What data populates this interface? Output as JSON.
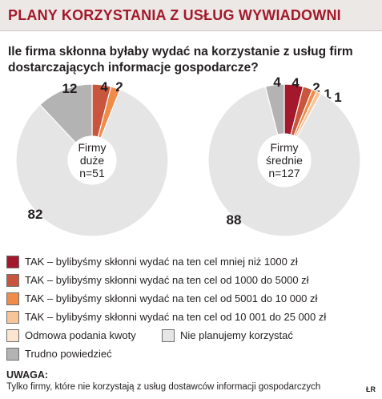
{
  "header": {
    "title": "PLANY KORZYSTANIA Z USŁUG WYWIADOWNI",
    "question": "Ile firma skłonna byłaby wydać na korzystanie z usług firm dostarczających informacje gospodarcze?"
  },
  "chart_data": [
    {
      "type": "pie",
      "center_lines": [
        "Firmy",
        "duże",
        "n=51"
      ],
      "slices": [
        {
          "key": "tak_do_1000",
          "value": 0,
          "label": "",
          "color": "#a3182a"
        },
        {
          "key": "tak_1000_5000",
          "value": 4,
          "label": "4",
          "color": "#c8553d"
        },
        {
          "key": "tak_5001_10000",
          "value": 2,
          "label": "2",
          "color": "#f08c4a"
        },
        {
          "key": "tak_10001_25000",
          "value": 0,
          "label": "",
          "color": "#f7c59a"
        },
        {
          "key": "odmowa",
          "value": 0,
          "label": "",
          "color": "#fbe4d0"
        },
        {
          "key": "nie_planujemy",
          "value": 82,
          "label": "82",
          "color": "#e5e5e6"
        },
        {
          "key": "trudno",
          "value": 12,
          "label": "12",
          "color": "#b3b3b4"
        }
      ]
    },
    {
      "type": "pie",
      "center_lines": [
        "Firmy",
        "średnie",
        "n=127"
      ],
      "slices": [
        {
          "key": "tak_do_1000",
          "value": 4,
          "label": "4",
          "color": "#a3182a"
        },
        {
          "key": "tak_1000_5000",
          "value": 2,
          "label": "2",
          "color": "#c8553d"
        },
        {
          "key": "tak_5001_10000",
          "value": 1,
          "label": "1",
          "color": "#f08c4a"
        },
        {
          "key": "tak_10001_25000",
          "value": 1,
          "label": "1",
          "color": "#f7c59a"
        },
        {
          "key": "odmowa",
          "value": 0,
          "label": "",
          "color": "#fbe4d0"
        },
        {
          "key": "nie_planujemy",
          "value": 88,
          "label": "88",
          "color": "#e5e5e6"
        },
        {
          "key": "trudno",
          "value": 4,
          "label": "4",
          "color": "#b3b3b4"
        }
      ]
    }
  ],
  "legend": [
    {
      "label": "TAK – bylibyśmy skłonni wydać na ten cel mniej niż 1000 zł",
      "color": "#a3182a"
    },
    {
      "label": "TAK – bylibyśmy skłonni wydać na ten cel od 1000 do 5000 zł",
      "color": "#c8553d"
    },
    {
      "label": "TAK – bylibyśmy skłonni wydać na ten cel od 5001 do 10 000 zł",
      "color": "#f08c4a"
    },
    {
      "label": "TAK – bylibyśmy skłonni wydać na ten cel od 10 001 do 25 000 zł",
      "color": "#f7c59a"
    },
    {
      "label": "Odmowa podania kwoty",
      "color": "#fbe4d0"
    },
    {
      "label": "Nie planujemy korzystać",
      "color": "#e5e5e6"
    },
    {
      "label": "Trudno powiedzieć",
      "color": "#b3b3b4"
    }
  ],
  "note": {
    "heading": "UWAGA:",
    "text": "Tylko firmy, które nie korzystają z usług dostawców informacji gospodarczych",
    "credit": "ŁR"
  }
}
